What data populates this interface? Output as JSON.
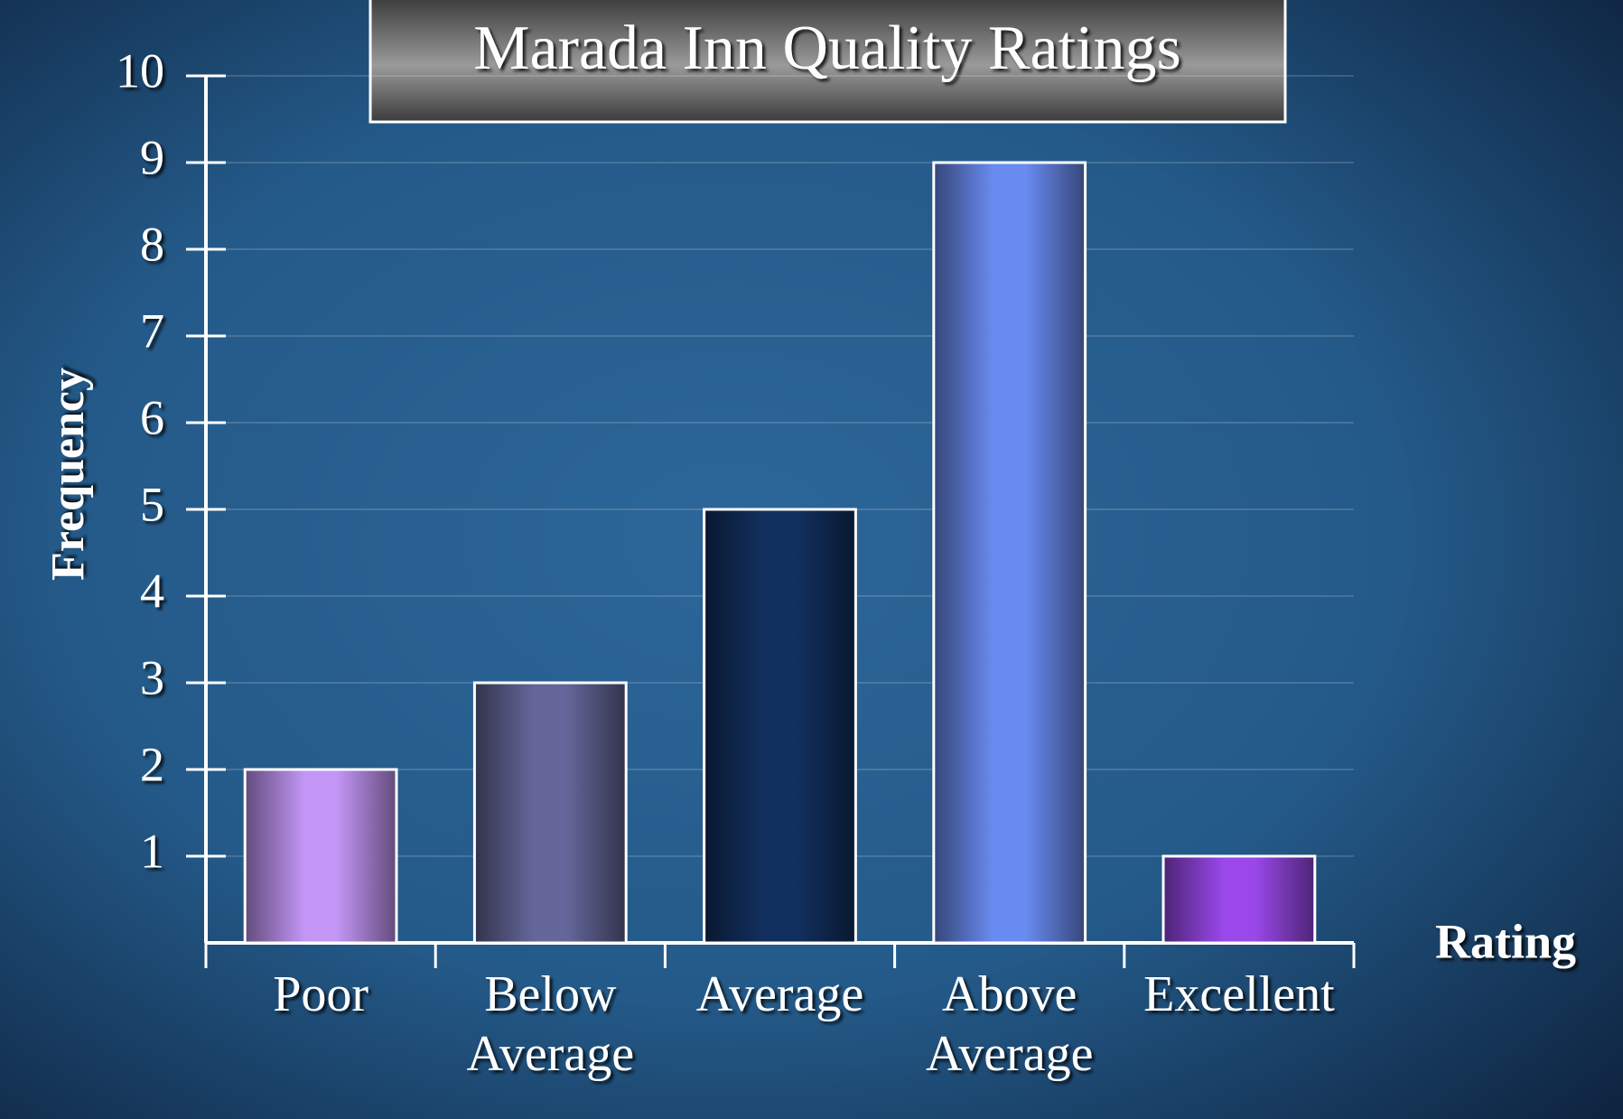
{
  "chart_data": {
    "type": "bar",
    "title": "Marada Inn Quality Ratings",
    "x_label": "Rating",
    "y_label": "Frequency",
    "categories": [
      "Poor",
      "Below Average",
      "Average",
      "Above Average",
      "Excellent"
    ],
    "values": [
      2,
      3,
      5,
      9,
      1
    ],
    "colors": [
      "#c497f7",
      "#65679a",
      "#12305f",
      "#6a8cf2",
      "#9a48ea"
    ],
    "ylim": [
      0,
      10
    ],
    "yticks": [
      1,
      2,
      3,
      4,
      5,
      6,
      7,
      8,
      9,
      10
    ],
    "grid": true
  }
}
